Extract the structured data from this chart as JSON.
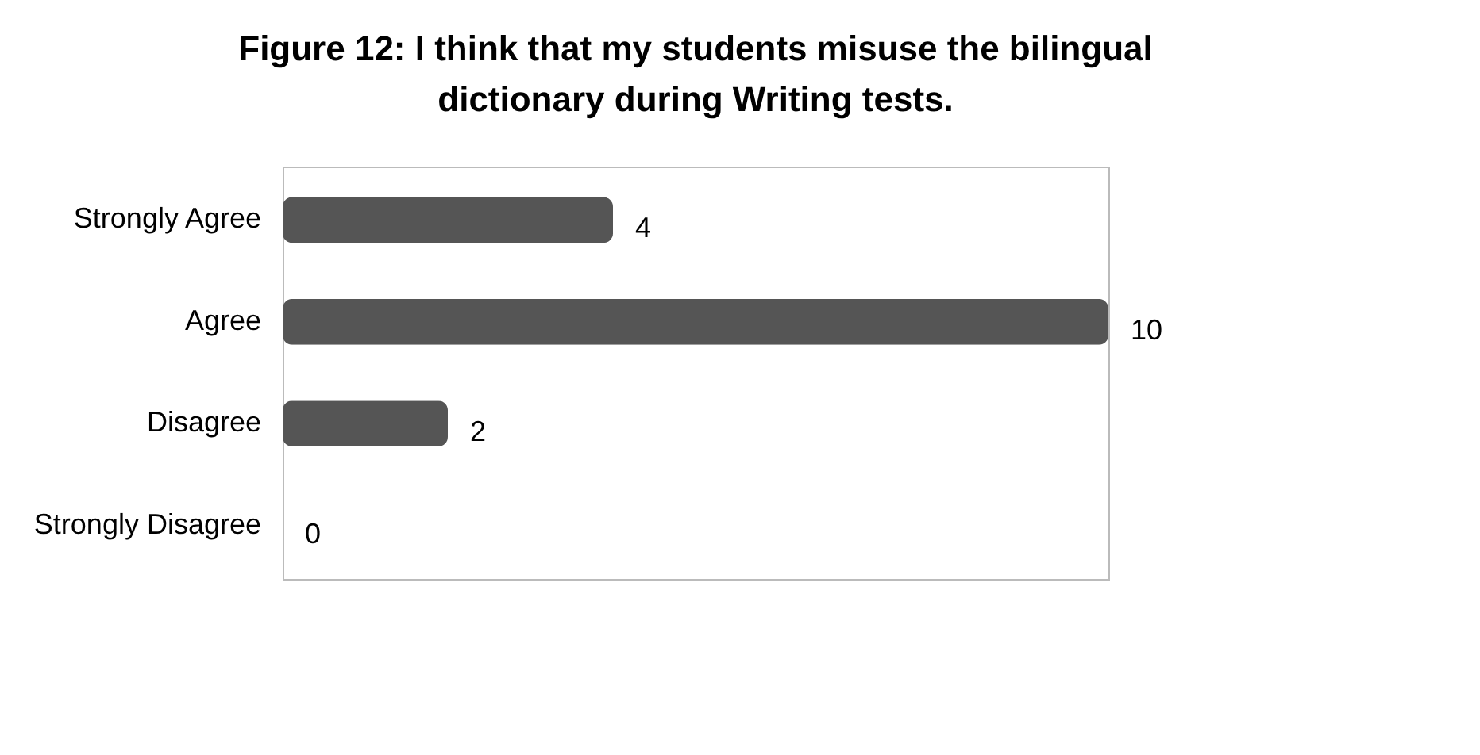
{
  "chart_data": {
    "type": "bar",
    "orientation": "horizontal",
    "title": "Figure 12: I think that my students misuse the bilingual dictionary during Writing tests.",
    "categories": [
      "Strongly Agree",
      "Agree",
      "Disagree",
      "Strongly Disagree"
    ],
    "values": [
      4,
      10,
      2,
      0
    ],
    "color": "#555555",
    "data_labels": true,
    "grid": false
  }
}
